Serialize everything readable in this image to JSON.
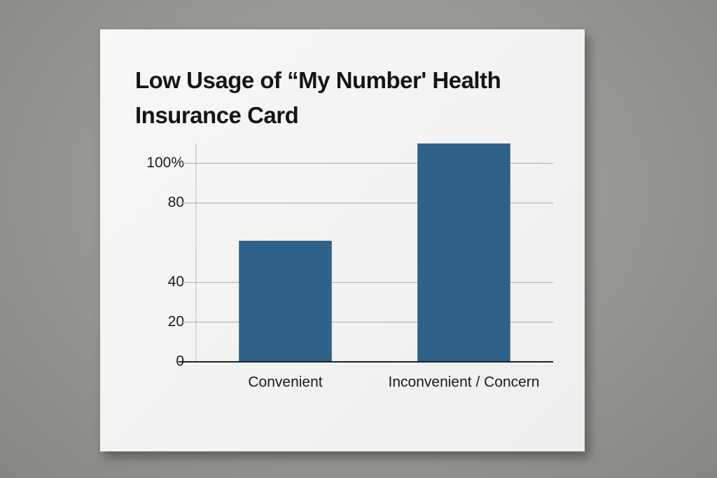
{
  "chart_data": {
    "type": "bar",
    "title": "Low Usage of “My Number' Health Insurance Card",
    "categories": [
      "Convenient",
      "Inconvenient / Concern"
    ],
    "values": [
      61,
      110
    ],
    "color": "#2f6189",
    "ylim": [
      0,
      110
    ],
    "yticks": [
      0,
      20,
      40,
      80,
      {
        "value": 100,
        "label": "100%"
      }
    ],
    "grid": true
  }
}
